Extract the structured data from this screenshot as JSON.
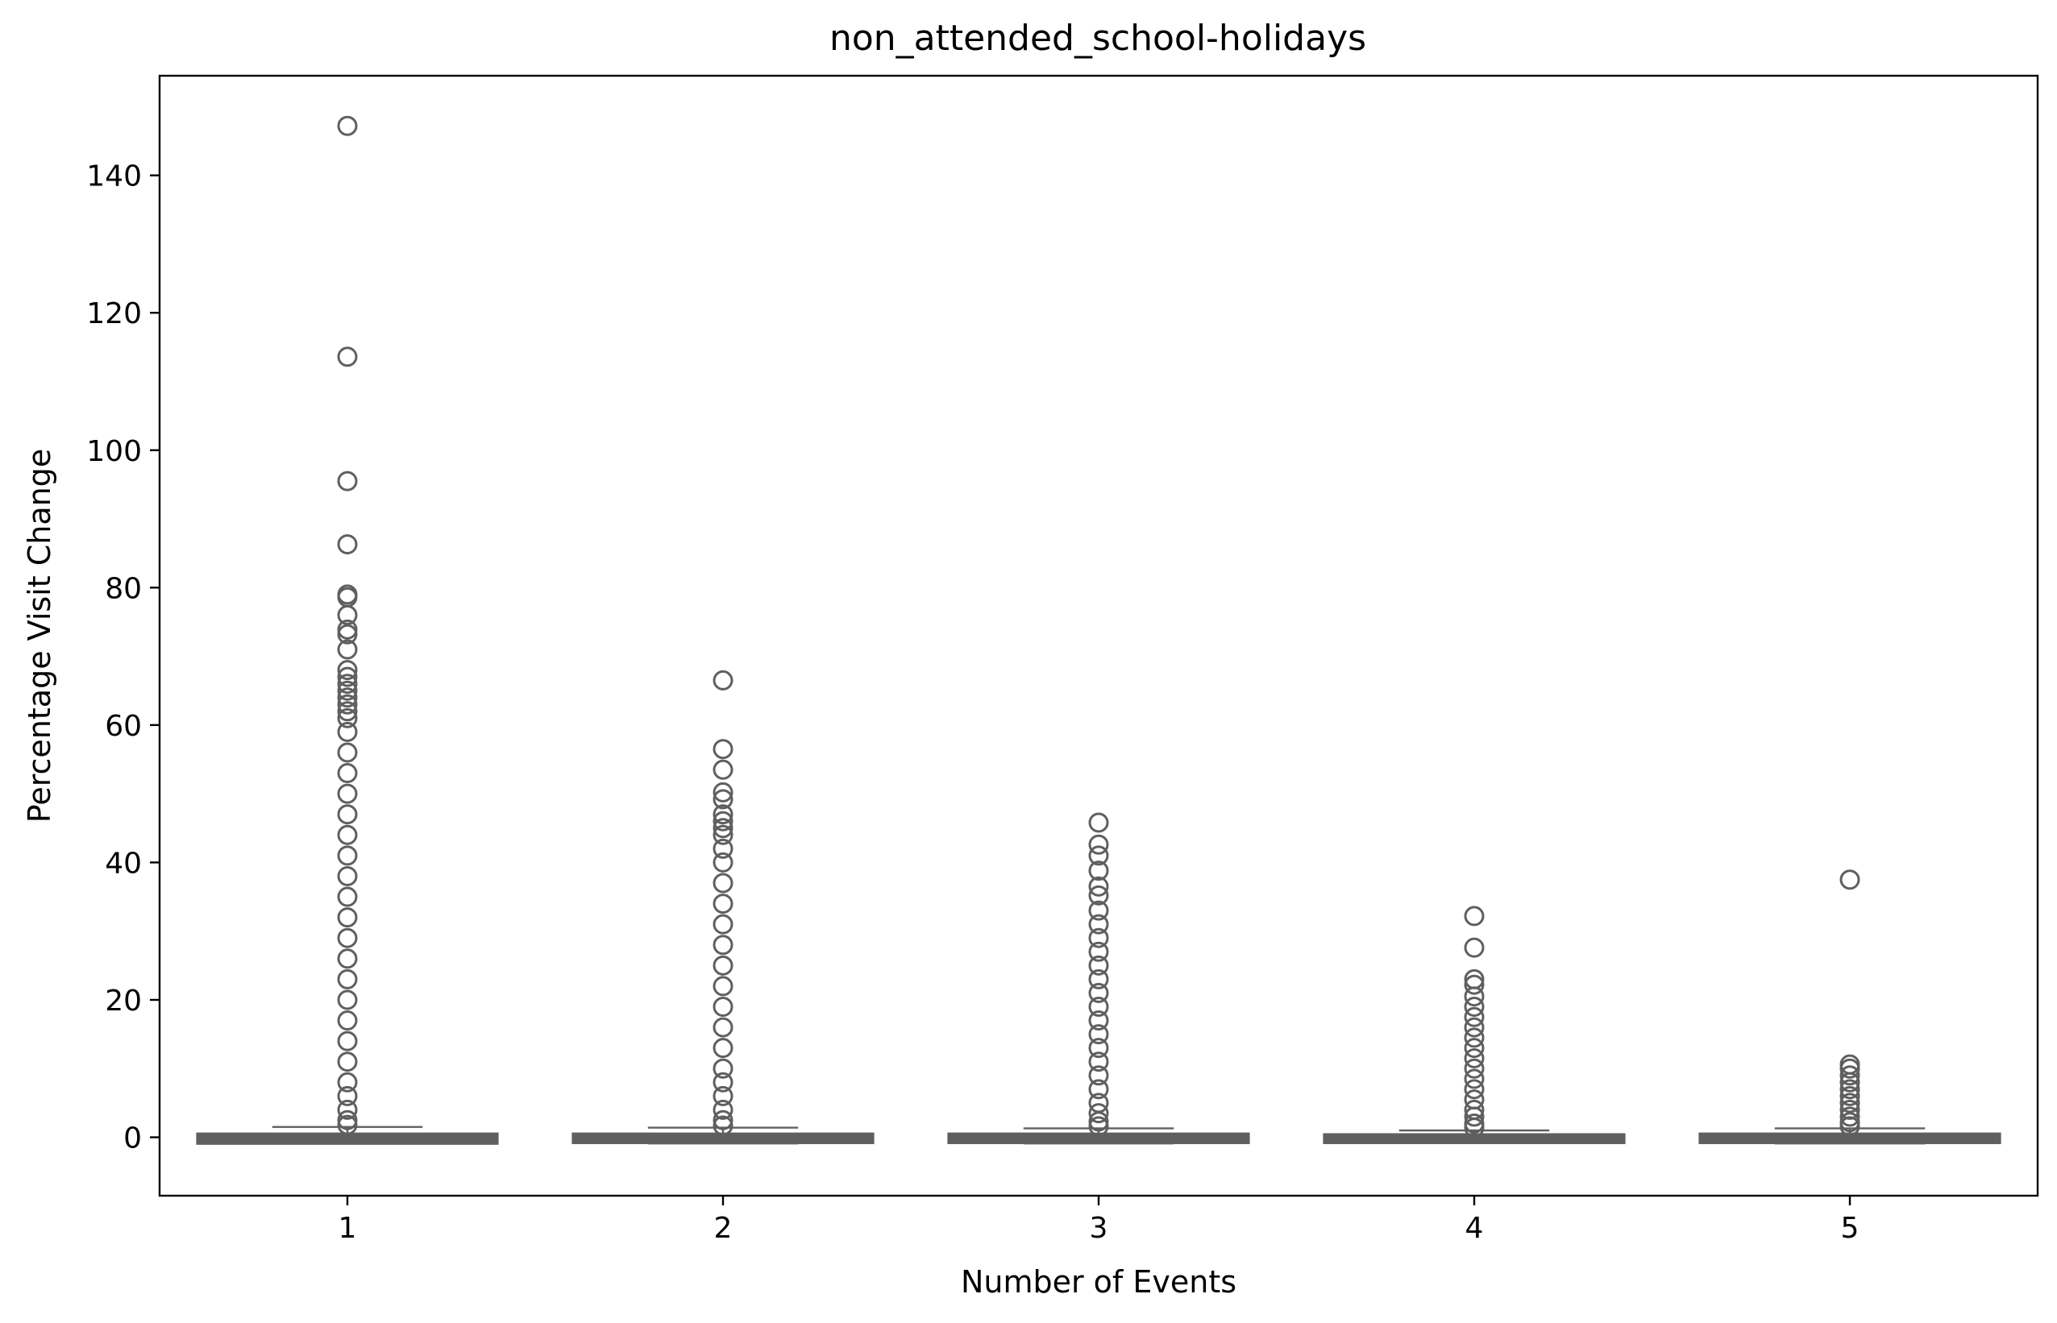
{
  "chart_data": {
    "type": "box",
    "title": "non_attended_school-holidays",
    "xlabel": "Number of Events",
    "ylabel": "Percentage Visit Change",
    "categories": [
      "1",
      "2",
      "3",
      "4",
      "5"
    ],
    "ylim": [
      -8.5,
      154.5
    ],
    "yticks": [
      0,
      20,
      40,
      60,
      80,
      100,
      120,
      140
    ],
    "grid": false,
    "legend": "none",
    "colors": {
      "box": "#5f5f5f",
      "outlier": "#5f5f5f",
      "axis": "#000000"
    },
    "boxes": [
      {
        "category": "1",
        "whislo": -0.9,
        "q1": -0.6,
        "med": -0.2,
        "q3": 0.2,
        "whishi": 1.5,
        "outliers": [
          147.2,
          113.6,
          95.5,
          86.3,
          79.0,
          78.6,
          76.0,
          73.9,
          73.2,
          71.0,
          68.0,
          67.0,
          66.0,
          65.0,
          64.0,
          63.0,
          62.0,
          61.0,
          59.0,
          56.0,
          53.0,
          50.0,
          47.0,
          44.0,
          41.0,
          38.0,
          35.0,
          32.0,
          29.0,
          26.0,
          23.0,
          20.0,
          17.0,
          14.0,
          11.0,
          8.0,
          6.0,
          4.0,
          2.5,
          1.8
        ]
      },
      {
        "category": "2",
        "whislo": -0.9,
        "q1": -0.5,
        "med": -0.2,
        "q3": 0.2,
        "whishi": 1.4,
        "outliers": [
          66.5,
          56.5,
          53.5,
          50.2,
          49.2,
          47.0,
          46.0,
          45.0,
          44.0,
          42.0,
          40.0,
          37.0,
          34.0,
          31.0,
          28.0,
          25.0,
          22.0,
          19.0,
          16.0,
          13.0,
          10.0,
          8.0,
          6.0,
          4.0,
          2.5,
          1.7
        ]
      },
      {
        "category": "3",
        "whislo": -0.9,
        "q1": -0.5,
        "med": -0.2,
        "q3": 0.2,
        "whishi": 1.3,
        "outliers": [
          45.8,
          42.6,
          41.0,
          38.8,
          36.5,
          35.2,
          33.0,
          31.0,
          29.0,
          27.0,
          25.0,
          23.0,
          21.0,
          19.0,
          17.0,
          15.0,
          13.0,
          11.0,
          9.0,
          7.0,
          5.0,
          3.5,
          2.3,
          1.6
        ]
      },
      {
        "category": "4",
        "whislo": -0.8,
        "q1": -0.5,
        "med": -0.2,
        "q3": 0.1,
        "whishi": 1.0,
        "outliers": [
          32.2,
          27.6,
          23.0,
          22.2,
          20.5,
          19.0,
          17.5,
          16.0,
          14.5,
          13.0,
          11.5,
          10.0,
          8.5,
          7.0,
          5.5,
          4.0,
          3.0,
          2.0,
          1.4
        ]
      },
      {
        "category": "5",
        "whislo": -0.9,
        "q1": -0.5,
        "med": -0.2,
        "q3": 0.2,
        "whishi": 1.3,
        "outliers": [
          37.5,
          10.6,
          10.0,
          9.0,
          8.0,
          7.0,
          6.0,
          5.0,
          4.0,
          3.0,
          2.2,
          1.6
        ]
      }
    ]
  }
}
